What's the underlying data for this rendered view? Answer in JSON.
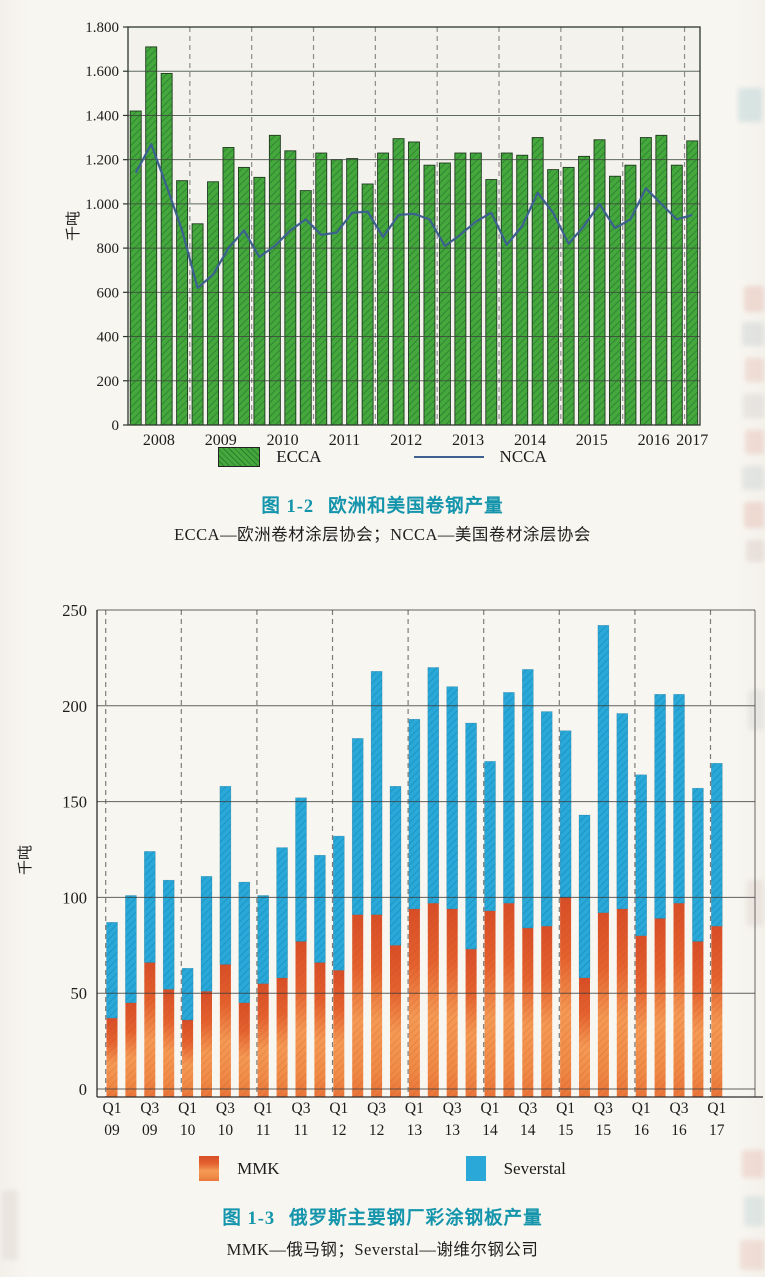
{
  "page": {
    "background": "#f8f6f1",
    "caption_color": "#1495ac"
  },
  "figure_1_2": {
    "caption_label": "图 1-2",
    "caption_title": "欧洲和美国卷钢产量",
    "caption_note": "ECCA—欧洲卷材涂层协会；NCCA—美国卷材涂层协会",
    "legend": {
      "ecca": "ECCA",
      "ncca": "NCCA"
    }
  },
  "figure_1_3": {
    "caption_label": "图 1-3",
    "caption_title": "俄罗斯主要钢厂彩涂钢板产量",
    "caption_note": "MMK—俄马钢；Severstal—谢维尔钢公司",
    "legend": {
      "mmk": "MMK",
      "severstal": "Severstal"
    }
  },
  "chart_data": [
    {
      "type": "bar",
      "title": "图 1-2 欧洲和美国卷钢产量",
      "ylabel": "千吨",
      "ylim": [
        0,
        1800
      ],
      "ytick_step": 200,
      "ytick_labels": [
        "0",
        "200",
        "400",
        "600",
        "800",
        "1.000",
        "1.200",
        "1.400",
        "1.600",
        "1.800"
      ],
      "grid": "horizontal solid, dashed vertical year separators",
      "legend_position": "bottom center",
      "x_year_labels": [
        "2008",
        "2009",
        "2010",
        "2011",
        "2012",
        "2013",
        "2014",
        "2015",
        "2016",
        "2017"
      ],
      "x_quarters": [
        "2008-Q1",
        "2008-Q2",
        "2008-Q3",
        "2008-Q4",
        "2009-Q1",
        "2009-Q2",
        "2009-Q3",
        "2009-Q4",
        "2010-Q1",
        "2010-Q2",
        "2010-Q3",
        "2010-Q4",
        "2011-Q1",
        "2011-Q2",
        "2011-Q3",
        "2011-Q4",
        "2012-Q1",
        "2012-Q2",
        "2012-Q3",
        "2012-Q4",
        "2013-Q1",
        "2013-Q2",
        "2013-Q3",
        "2013-Q4",
        "2014-Q1",
        "2014-Q2",
        "2014-Q3",
        "2014-Q4",
        "2015-Q1",
        "2015-Q2",
        "2015-Q3",
        "2015-Q4",
        "2016-Q1",
        "2016-Q2",
        "2016-Q3",
        "2016-Q4",
        "2017-Q1"
      ],
      "series": [
        {
          "name": "ECCA",
          "type": "bar",
          "color": "#45a83d",
          "hatch_color": "#2e7e30",
          "edge_color": "#1e3a1e",
          "values": [
            1420,
            1710,
            1590,
            1105,
            910,
            1100,
            1255,
            1165,
            1120,
            1310,
            1240,
            1060,
            1230,
            1200,
            1205,
            1090,
            1230,
            1295,
            1280,
            1175,
            1185,
            1230,
            1230,
            1110,
            1230,
            1220,
            1300,
            1155,
            1165,
            1215,
            1290,
            1125,
            1175,
            1300,
            1310,
            1175,
            1285
          ]
        },
        {
          "name": "NCCA",
          "type": "line",
          "color": "#3c618e",
          "values": [
            1140,
            1270,
            1080,
            880,
            620,
            680,
            800,
            880,
            760,
            810,
            880,
            930,
            860,
            870,
            960,
            965,
            850,
            950,
            955,
            930,
            810,
            860,
            920,
            960,
            815,
            900,
            1050,
            960,
            820,
            900,
            1000,
            890,
            930,
            1070,
            1000,
            930,
            950
          ]
        }
      ]
    },
    {
      "type": "bar",
      "subtype": "stacked",
      "title": "图 1-3 俄罗斯主要钢厂彩涂钢板产量",
      "ylabel": "千吨",
      "ylim": [
        0,
        250
      ],
      "ytick_step": 50,
      "ytick_labels": [
        "0",
        "50",
        "100",
        "150",
        "200",
        "250"
      ],
      "grid": "horizontal solid, dashed vertical year separators",
      "legend_position": "bottom center",
      "xtick_labels": [
        "Q1 09",
        "Q3 09",
        "Q1 10",
        "Q3 10",
        "Q1 11",
        "Q3 11",
        "Q1 12",
        "Q3 12",
        "Q1 13",
        "Q3 13",
        "Q1 14",
        "Q3 14",
        "Q1 15",
        "Q3 15",
        "Q1 16",
        "Q3 16",
        "Q1 17"
      ],
      "x_quarters": [
        "2009-Q1",
        "2009-Q2",
        "2009-Q3",
        "2009-Q4",
        "2010-Q1",
        "2010-Q2",
        "2010-Q3",
        "2010-Q4",
        "2011-Q1",
        "2011-Q2",
        "2011-Q3",
        "2011-Q4",
        "2012-Q1",
        "2012-Q2",
        "2012-Q3",
        "2012-Q4",
        "2013-Q1",
        "2013-Q2",
        "2013-Q3",
        "2013-Q4",
        "2014-Q1",
        "2014-Q2",
        "2014-Q3",
        "2014-Q4",
        "2015-Q1",
        "2015-Q2",
        "2015-Q3",
        "2015-Q4",
        "2016-Q1",
        "2016-Q2",
        "2016-Q3",
        "2016-Q4",
        "2017-Q1"
      ],
      "series": [
        {
          "name": "MMK",
          "color_top": "#d84e27",
          "color_mid": "#f49a55",
          "color_bottom": "#e9753a",
          "values": [
            37,
            45,
            66,
            52,
            36,
            51,
            65,
            45,
            55,
            58,
            77,
            66,
            62,
            91,
            91,
            75,
            94,
            97,
            94,
            73,
            93,
            97,
            84,
            85,
            100,
            58,
            92,
            94,
            80,
            89,
            97,
            77,
            85
          ]
        },
        {
          "name": "Severstal",
          "color": "#2aa8d8",
          "hatch_color": "#148cbe",
          "values": [
            50,
            56,
            58,
            57,
            27,
            60,
            93,
            63,
            46,
            68,
            75,
            56,
            70,
            92,
            127,
            83,
            99,
            123,
            116,
            118,
            78,
            110,
            135,
            112,
            87,
            85,
            150,
            102,
            84,
            117,
            109,
            80,
            85
          ]
        }
      ],
      "stack_totals": [
        87,
        101,
        124,
        109,
        63,
        111,
        158,
        108,
        101,
        126,
        152,
        122,
        132,
        183,
        218,
        158,
        193,
        220,
        210,
        191,
        171,
        207,
        219,
        197,
        187,
        143,
        242,
        196,
        164,
        206,
        206,
        157,
        170
      ]
    }
  ]
}
